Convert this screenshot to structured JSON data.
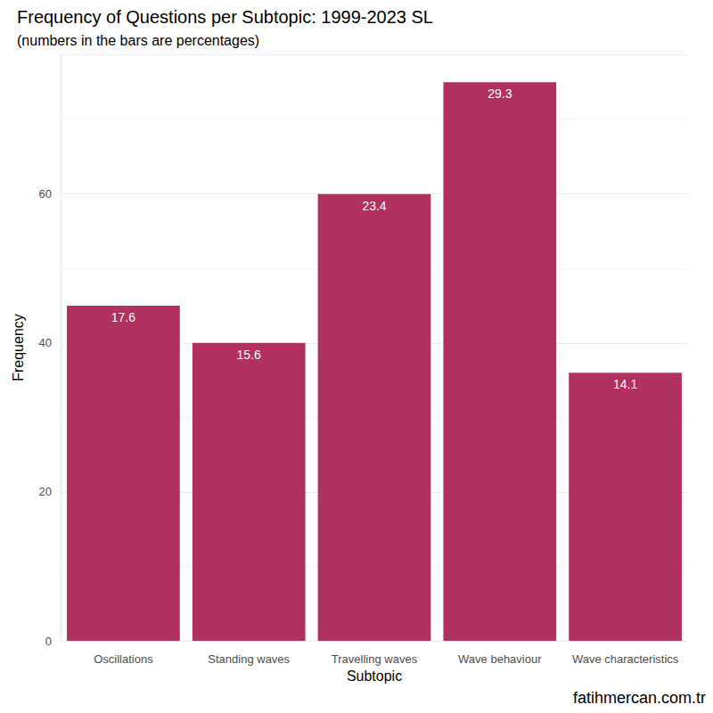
{
  "chart_data": {
    "type": "bar",
    "title": "Frequency of Questions per Subtopic: 1999-2023 SL",
    "subtitle": "(numbers in the bars are percentages)",
    "caption": "fatihmercan.com.tr",
    "x_label": "Subtopic",
    "y_label": "Frequency",
    "categories": [
      "Oscillations",
      "Standing waves",
      "Travelling waves",
      "Wave behaviour",
      "Wave characteristics"
    ],
    "values": [
      45,
      40,
      60,
      75,
      36
    ],
    "percentages": [
      17.6,
      15.6,
      23.4,
      29.3,
      14.1
    ],
    "color": "#b03060",
    "ylim": [
      0,
      78.75
    ],
    "yticks": [
      0,
      20,
      40,
      60
    ],
    "grid": true
  }
}
